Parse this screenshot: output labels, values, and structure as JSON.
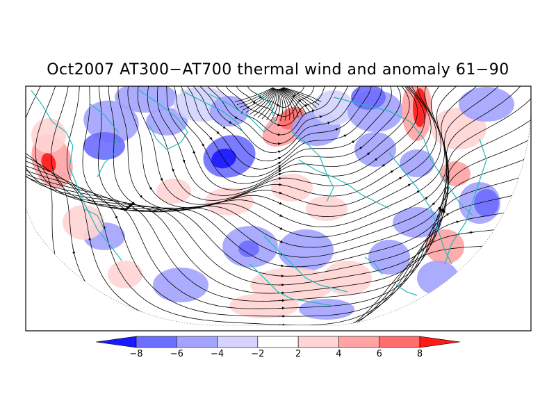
{
  "title": "Oct2007 AT300−AT700 thermal wind and anomaly 61−90",
  "colors": {
    "background": "#ffffff",
    "frame": "#000000",
    "streamline": "#000000",
    "coastline": "#20b8b8",
    "grid": "#888888"
  },
  "colorbar": {
    "levels": [
      -8,
      -6,
      -4,
      -2,
      2,
      4,
      6,
      8
    ],
    "tick_labels": [
      "−8",
      "−6",
      "−4",
      "−2",
      "2",
      "4",
      "6",
      "8"
    ],
    "segment_colors": [
      "#1a1aff",
      "#6d6dff",
      "#a3a3ff",
      "#d4d4ff",
      "#ffffff",
      "#ffd4d4",
      "#ffa3a3",
      "#ff6d6d",
      "#ff1a1a"
    ]
  },
  "map": {
    "projection": "north-polar-stereographic",
    "fields": [
      "thermal wind streamlines",
      "temperature anomaly shading",
      "coastlines and borders"
    ]
  }
}
